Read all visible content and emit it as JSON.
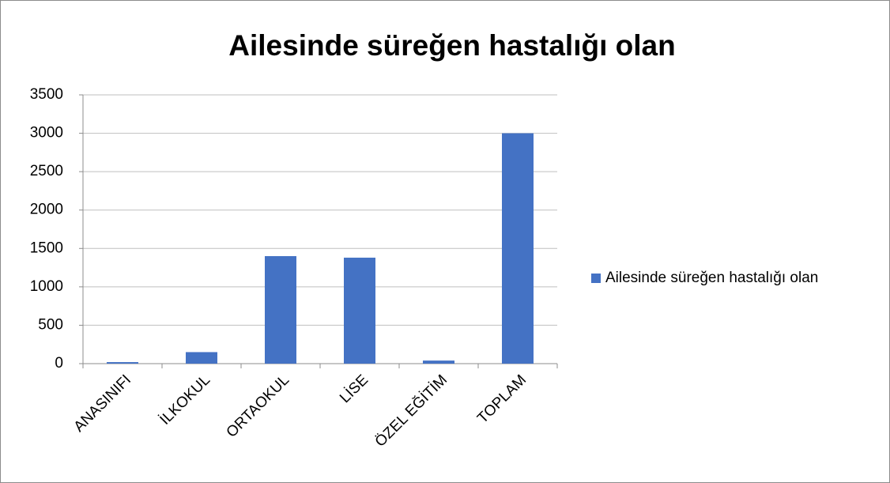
{
  "chart_data": {
    "type": "bar",
    "title": "Ailesinde süreğen hastalığı olan",
    "categories": [
      "ANASINIFI",
      "İLKOKUL",
      "ORTAOKUL",
      "LİSE",
      "ÖZEL EĞİTİM",
      "TOPLAM"
    ],
    "series": [
      {
        "name": "Ailesinde süreğen hastalığı olan",
        "color": "#4472c4",
        "values": [
          20,
          150,
          1400,
          1380,
          40,
          3000
        ]
      }
    ],
    "ylim": [
      0,
      3500
    ],
    "yticks": [
      0,
      500,
      1000,
      1500,
      2000,
      2500,
      3000,
      3500
    ],
    "grid": true,
    "legend": "right"
  }
}
